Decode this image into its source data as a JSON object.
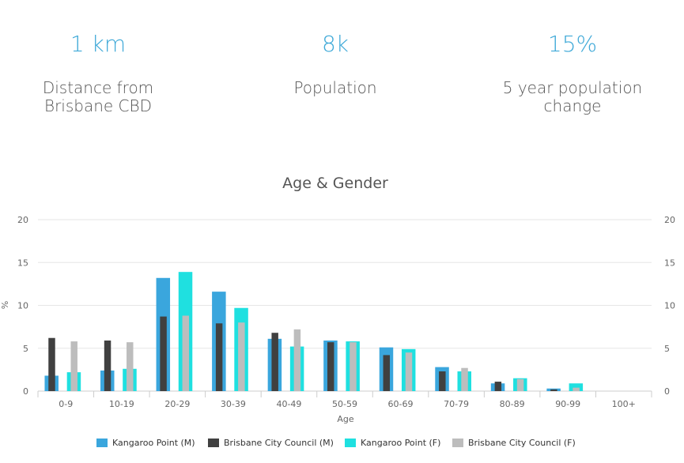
{
  "stats": [
    {
      "value": "1 km",
      "label": "Distance from Brisbane CBD"
    },
    {
      "value": "8k",
      "label": "Population"
    },
    {
      "value": "15%",
      "label": "5 year population change"
    }
  ],
  "chart_data": {
    "type": "bar",
    "title": "Age & Gender",
    "xlabel": "Age",
    "ylabel": "%",
    "ylim": [
      0,
      20
    ],
    "yticks": [
      0,
      5,
      10,
      15,
      20
    ],
    "grid": true,
    "legend_position": "bottom",
    "categories": [
      "0-9",
      "10-19",
      "20-29",
      "30-39",
      "40-49",
      "50-59",
      "60-69",
      "70-79",
      "80-89",
      "90-99",
      "100+"
    ],
    "series": [
      {
        "name": "Kangaroo Point (M)",
        "color": "#3aa6dd",
        "values": [
          1.8,
          2.4,
          13.2,
          11.6,
          6.1,
          5.9,
          5.1,
          2.8,
          0.9,
          0.3,
          0
        ]
      },
      {
        "name": "Brisbane City Council (M)",
        "color": "#404040",
        "values": [
          6.2,
          5.9,
          8.7,
          7.9,
          6.8,
          5.7,
          4.2,
          2.3,
          1.1,
          0.2,
          0
        ]
      },
      {
        "name": "Kangaroo Point (F)",
        "color": "#1fe0e0",
        "values": [
          2.2,
          2.6,
          13.9,
          9.7,
          5.2,
          5.8,
          4.9,
          2.3,
          1.5,
          0.9,
          0
        ]
      },
      {
        "name": "Brisbane City Council (F)",
        "color": "#bdbdbd",
        "values": [
          5.8,
          5.7,
          8.8,
          8.0,
          7.2,
          5.7,
          4.5,
          2.7,
          1.4,
          0.4,
          0
        ]
      }
    ]
  }
}
